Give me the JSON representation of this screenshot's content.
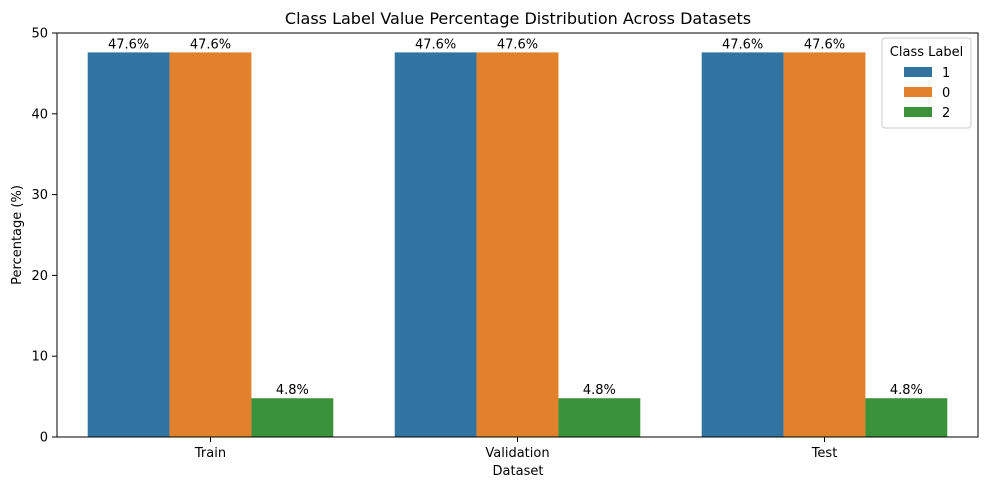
{
  "chart_data": {
    "type": "bar",
    "title": "Class Label Value Percentage Distribution Across Datasets",
    "xlabel": "Dataset",
    "ylabel": "Percentage (%)",
    "categories": [
      "Train",
      "Validation",
      "Test"
    ],
    "ylim": [
      0,
      50
    ],
    "yticks": [
      0,
      10,
      20,
      30,
      40,
      50
    ],
    "grid": false,
    "legend": {
      "title": "Class Label",
      "placement": "top-right"
    },
    "series": [
      {
        "name": "1",
        "color": "#3274a1",
        "values": [
          47.6,
          47.6,
          47.6
        ],
        "labels": [
          "47.6%",
          "47.6%",
          "47.6%"
        ]
      },
      {
        "name": "0",
        "color": "#e1812c",
        "values": [
          47.6,
          47.6,
          47.6
        ],
        "labels": [
          "47.6%",
          "47.6%",
          "47.6%"
        ]
      },
      {
        "name": "2",
        "color": "#3a923a",
        "values": [
          4.8,
          4.8,
          4.8
        ],
        "labels": [
          "4.8%",
          "4.8%",
          "4.8%"
        ]
      }
    ]
  }
}
